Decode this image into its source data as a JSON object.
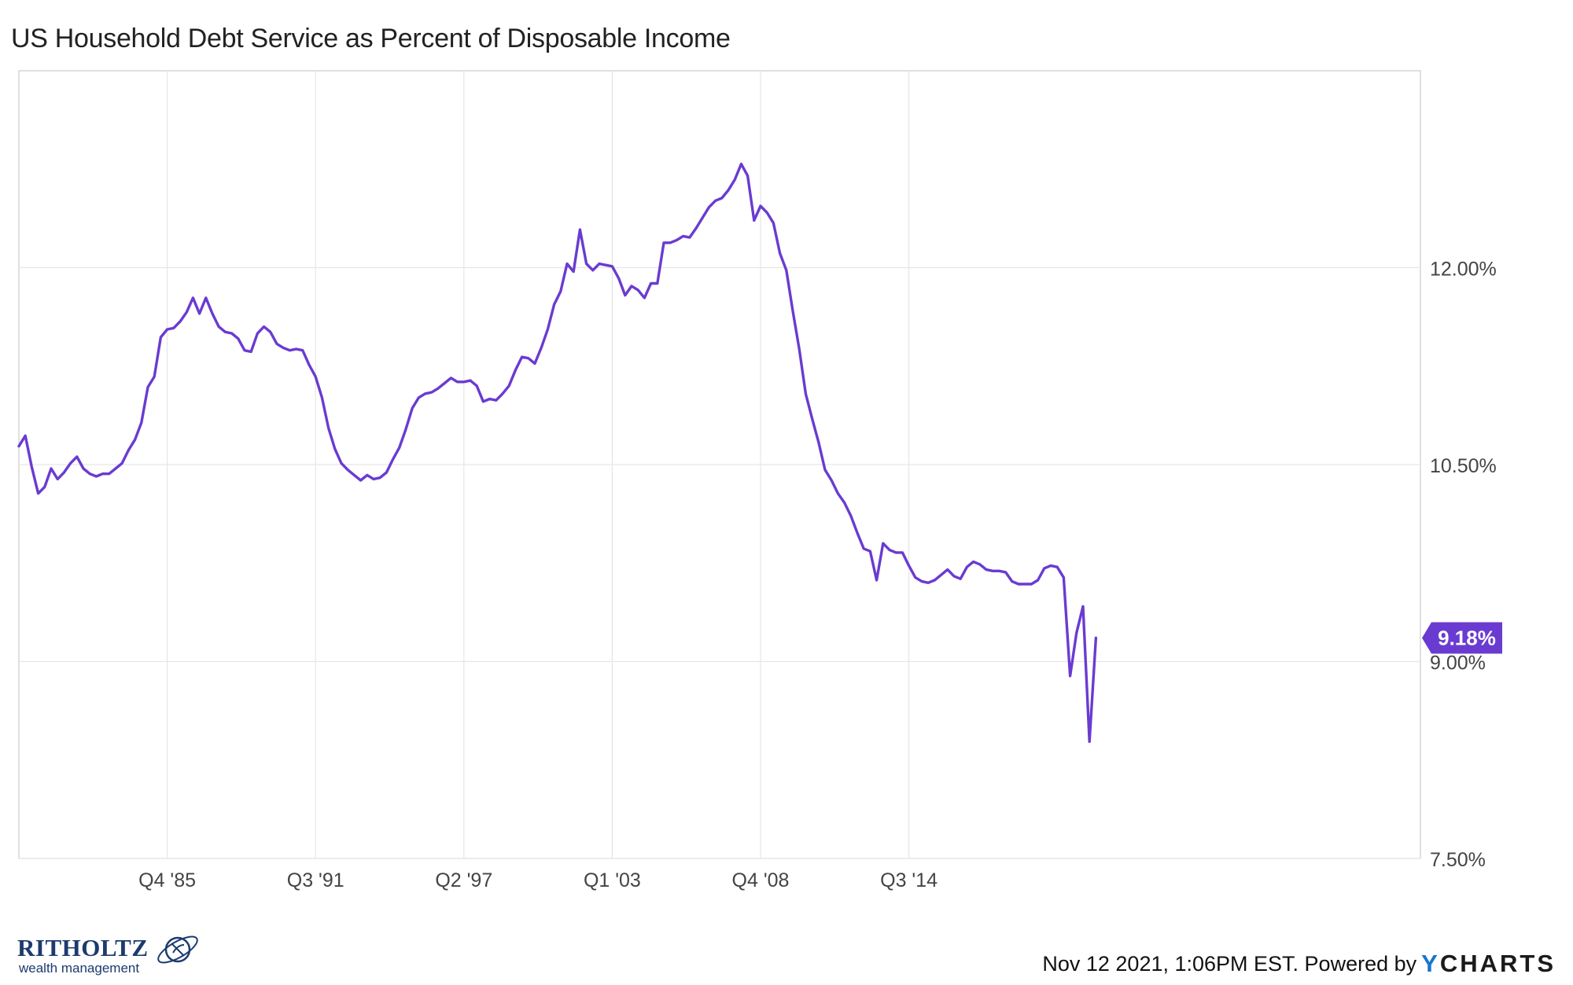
{
  "title": "US Household Debt Service as Percent of Disposable Income",
  "footer": {
    "timestamp": "Nov 12 2021, 1:06PM EST. Powered by",
    "brand_prefix": "Y",
    "brand_rest": "CHARTS"
  },
  "logo": {
    "name": "RITHOLTZ",
    "sub": "wealth management",
    "icon": "globe-swirl-icon"
  },
  "colors": {
    "line": "#6a3bd1",
    "grid": "#e6e6e6",
    "axis": "#cccccc",
    "label_bg": "#6a3bd1"
  },
  "chart_data": {
    "type": "line",
    "title": "US Household Debt Service as Percent of Disposable Income",
    "xlabel": "",
    "ylabel": "",
    "x_start": "Q1 1980",
    "x_end": "Q2 2021",
    "frequency": "quarterly",
    "ylim": [
      7.5,
      13.5
    ],
    "y_ticks": [
      {
        "value": 12.0,
        "label": "12.00%"
      },
      {
        "value": 10.5,
        "label": "10.50%"
      },
      {
        "value": 9.0,
        "label": "9.00%"
      },
      {
        "value": 7.5,
        "label": "7.50%"
      }
    ],
    "x_ticks": [
      {
        "label": "Q4 '85",
        "index": 23
      },
      {
        "label": "Q3 '91",
        "index": 46
      },
      {
        "label": "Q2 '97",
        "index": 69
      },
      {
        "label": "Q1 '03",
        "index": 92
      },
      {
        "label": "Q4 '08",
        "index": 115
      },
      {
        "label": "Q3 '14",
        "index": 138
      }
    ],
    "grid": true,
    "last_value_label": "9.18%",
    "series": [
      {
        "values": [
          10.64,
          10.72,
          10.48,
          10.28,
          10.33,
          10.47,
          10.39,
          10.44,
          10.51,
          10.56,
          10.47,
          10.43,
          10.41,
          10.43,
          10.43,
          10.47,
          10.51,
          10.61,
          10.69,
          10.82,
          11.09,
          11.17,
          11.47,
          11.53,
          11.54,
          11.59,
          11.66,
          11.77,
          11.65,
          11.77,
          11.65,
          11.55,
          11.51,
          11.5,
          11.46,
          11.37,
          11.36,
          11.5,
          11.55,
          11.51,
          11.42,
          11.39,
          11.37,
          11.38,
          11.37,
          11.26,
          11.17,
          11.01,
          10.78,
          10.62,
          10.51,
          10.46,
          10.42,
          10.38,
          10.42,
          10.39,
          10.4,
          10.44,
          10.54,
          10.63,
          10.77,
          10.93,
          11.01,
          11.04,
          11.05,
          11.08,
          11.12,
          11.16,
          11.13,
          11.13,
          11.14,
          11.1,
          10.98,
          11.0,
          10.99,
          11.04,
          11.1,
          11.22,
          11.32,
          11.31,
          11.27,
          11.39,
          11.53,
          11.72,
          11.82,
          12.03,
          11.97,
          12.29,
          12.03,
          11.98,
          12.03,
          12.02,
          12.01,
          11.92,
          11.79,
          11.86,
          11.83,
          11.77,
          11.88,
          11.88,
          12.19,
          12.19,
          12.21,
          12.24,
          12.23,
          12.3,
          12.38,
          12.46,
          12.51,
          12.53,
          12.59,
          12.67,
          12.79,
          12.7,
          12.36,
          12.47,
          12.42,
          12.34,
          12.11,
          11.98,
          11.67,
          11.38,
          11.04,
          10.85,
          10.67,
          10.46,
          10.38,
          10.28,
          10.21,
          10.11,
          9.98,
          9.86,
          9.84,
          9.62,
          9.9,
          9.85,
          9.83,
          9.83,
          9.73,
          9.64,
          9.61,
          9.6,
          9.62,
          9.66,
          9.7,
          9.65,
          9.63,
          9.72,
          9.76,
          9.74,
          9.7,
          9.69,
          9.69,
          9.68,
          9.61,
          9.59,
          9.59,
          9.59,
          9.62,
          9.71,
          9.73,
          9.72,
          9.64,
          8.89,
          9.22,
          9.42,
          8.39,
          9.18
        ]
      }
    ]
  }
}
